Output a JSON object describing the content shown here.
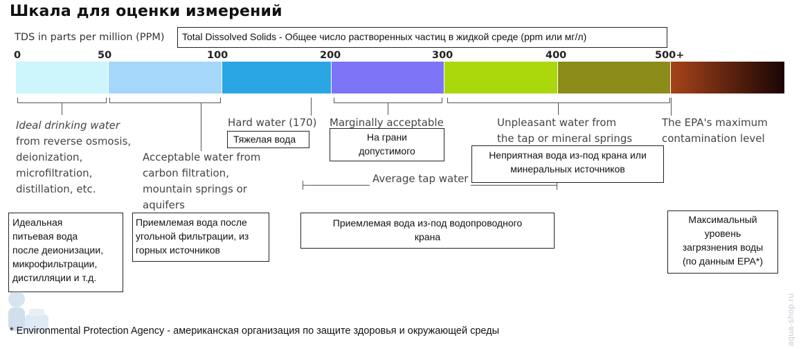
{
  "title": "Шкала для оценки измерений",
  "tds_label": "TDS in parts per million (PPM)",
  "tds_definition": "Total Dissolved Solids - Общее число растворенных частиц в жидкой среде (ppm или мг/л)",
  "scale": {
    "ticks": [
      "0",
      "50",
      "100",
      "200",
      "300",
      "400",
      "500+"
    ],
    "segments": [
      {
        "from": 0,
        "to": 50,
        "color": "#ccf6fb"
      },
      {
        "from": 50,
        "to": 100,
        "color": "#a4d7f9"
      },
      {
        "from": 100,
        "to": 200,
        "color": "#2aa6e4"
      },
      {
        "from": 200,
        "to": 300,
        "color": "#7d74f7"
      },
      {
        "from": 300,
        "to": 400,
        "color": "#abd80c"
      },
      {
        "from": 400,
        "to": 500,
        "color": "#8b8c1a"
      },
      {
        "from": 500,
        "to": null,
        "color_start": "#a6431a",
        "color_end": "#1a0505"
      }
    ]
  },
  "labels": {
    "ideal": {
      "en_line1": "Ideal drinking water",
      "en_rest": [
        "from reverse osmosis,",
        "deionization,",
        "microfiltration,",
        "distillation, etc."
      ],
      "ru": [
        "Идеальная",
        "питьевая вода",
        "после деионизации,",
        "микрофильтрации,",
        "дистилляции и т.д."
      ]
    },
    "acceptable": {
      "en": [
        "Acceptable water from",
        "carbon filtration,",
        "mountain springs or",
        "aquifers"
      ],
      "ru": [
        "Приемлемая вода после",
        "угольной фильтрации, из",
        "горных источников"
      ]
    },
    "hard": {
      "en": "Hard water (170)",
      "ru": "Тяжелая вода"
    },
    "marginal": {
      "en": "Marginally acceptable",
      "ru": [
        "На грани",
        "допустимого"
      ]
    },
    "unpleasant": {
      "en": [
        "Unpleasant water from",
        "the tap or mineral springs"
      ],
      "ru": [
        "Неприятная вода из-под крана или",
        "минеральных источников"
      ]
    },
    "epa": {
      "en": [
        "The EPA's maximum",
        "contamination level"
      ],
      "ru": [
        "Максимальный",
        "уровень",
        "загрязнения воды",
        "(по данным EPA*)"
      ]
    },
    "tap": {
      "en": "Average tap water",
      "ru": [
        "Приемлемая вода из-под водопроводного",
        "крана"
      ]
    }
  },
  "footnote": "* Environmental Protection Agency - американская организация по защите здоровья и окружающей среды",
  "watermark": "aqua-shop.ru"
}
